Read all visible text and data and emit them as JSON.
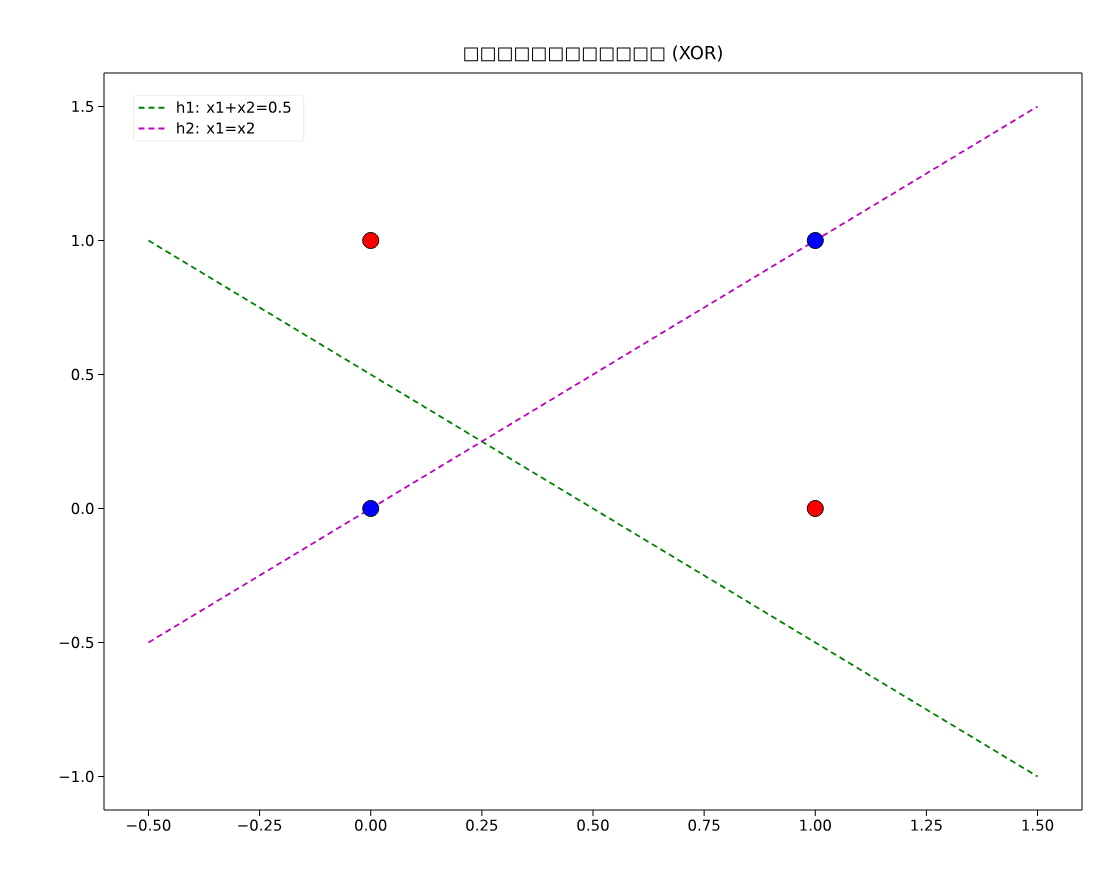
{
  "chart_data": {
    "type": "scatter",
    "title": "□□□□□□□□□□□□ (XOR)",
    "xlim": [
      -0.6,
      1.6
    ],
    "ylim": [
      -1.125,
      1.625
    ],
    "xticks": [
      {
        "value": -0.5,
        "label": "−0.50"
      },
      {
        "value": -0.25,
        "label": "−0.25"
      },
      {
        "value": 0,
        "label": "0.00"
      },
      {
        "value": 0.25,
        "label": "0.25"
      },
      {
        "value": 0.5,
        "label": "0.50"
      },
      {
        "value": 0.75,
        "label": "0.75"
      },
      {
        "value": 1.0,
        "label": "1.00"
      },
      {
        "value": 1.25,
        "label": "1.25"
      },
      {
        "value": 1.5,
        "label": "1.50"
      }
    ],
    "yticks": [
      {
        "value": -1.0,
        "label": "−1.0"
      },
      {
        "value": -0.5,
        "label": "−0.5"
      },
      {
        "value": 0,
        "label": "0.0"
      },
      {
        "value": 0.5,
        "label": "0.5"
      },
      {
        "value": 1.0,
        "label": "1.0"
      },
      {
        "value": 1.5,
        "label": "1.5"
      }
    ],
    "legend": "top left",
    "marker": "circle",
    "series": [
      {
        "color": "#ff0000",
        "x": [
          0,
          1
        ],
        "values": [
          1,
          0
        ]
      },
      {
        "color": "#0000ff",
        "x": [
          0,
          1
        ],
        "values": [
          0,
          1
        ]
      },
      {
        "type": "line",
        "name": "h1: x1+x2=0.5",
        "color": "#008000",
        "x": [
          -0.5,
          1.5
        ],
        "values": [
          1.0,
          -1.0
        ],
        "line_style": "dashed",
        "marker": "none"
      },
      {
        "type": "line",
        "name": "h2: x1=x2",
        "color": "#bf00bf",
        "x": [
          -0.5,
          1.5
        ],
        "values": [
          -0.5,
          1.5
        ],
        "line_style": "dashed",
        "marker": "none"
      }
    ]
  }
}
